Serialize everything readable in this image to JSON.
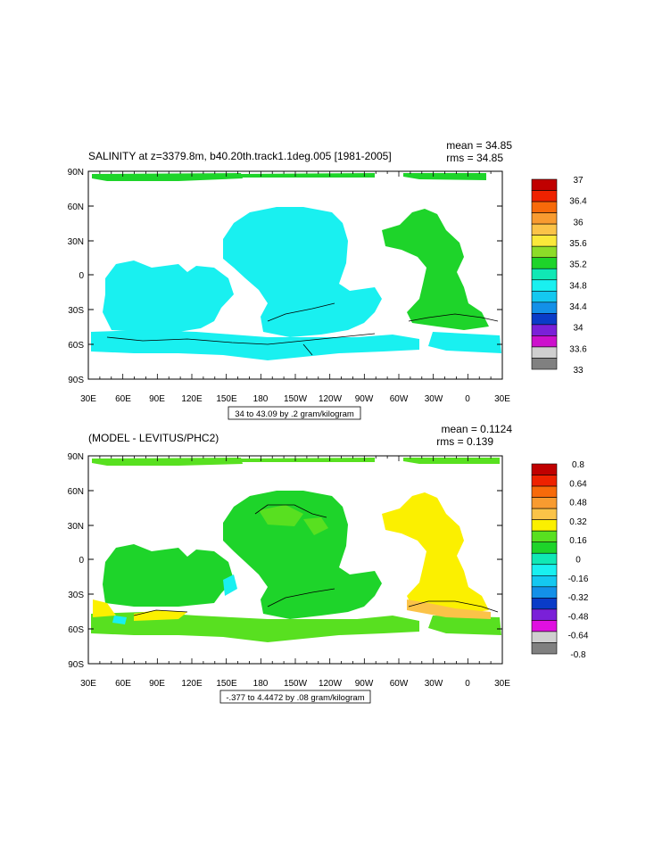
{
  "panels": [
    {
      "title": "SALINITY at z=3379.8m, b40.20th.track1.1deg.005 [1981-2005]",
      "stats": [
        "mean = 34.85",
        "rms = 34.85"
      ],
      "range_label": "34 to 43.09 by .2 gram/kilogram",
      "colorbar": {
        "labels": [
          "37",
          "36.4",
          "36",
          "35.6",
          "35.2",
          "34.8",
          "34.4",
          "34",
          "33.6",
          "33"
        ],
        "colors": [
          "#c00000",
          "#ee2200",
          "#f76a0a",
          "#f89b30",
          "#fbc348",
          "#fbe83a",
          "#8ddc28",
          "#1ed42a",
          "#10e8b5",
          "#19f0f0",
          "#14c8f0",
          "#1390e8",
          "#0a3cc8",
          "#7a20d8",
          "#cc10cc",
          "#cfcfcf",
          "#808080"
        ]
      },
      "land_mask": "salinity"
    },
    {
      "title": "(MODEL - LEVITUS/PHC2)",
      "stats": [
        "mean = 0.1124",
        "rms = 0.139"
      ],
      "range_label": "-.377 to 4.4472 by .08 gram/kilogram",
      "colorbar": {
        "labels": [
          "0.8",
          "0.64",
          "0.48",
          "0.32",
          "0.16",
          "0",
          "-0.16",
          "-0.32",
          "-0.48",
          "-0.64",
          "-0.8"
        ],
        "colors": [
          "#c00000",
          "#ee2200",
          "#f76a0a",
          "#f89b30",
          "#fbc348",
          "#fbf000",
          "#58e020",
          "#1ed42a",
          "#10e8b5",
          "#19f0f0",
          "#14c8f0",
          "#1390e8",
          "#0a3cc8",
          "#7a20d8",
          "#e010e0",
          "#cfcfcf",
          "#808080"
        ]
      },
      "land_mask": "difference"
    }
  ],
  "axes": {
    "lat_labels": [
      "90N",
      "60N",
      "30N",
      "0",
      "30S",
      "60S",
      "90S"
    ],
    "lon_labels": [
      "30E",
      "60E",
      "90E",
      "120E",
      "150E",
      "180",
      "150W",
      "120W",
      "90W",
      "60W",
      "30W",
      "0",
      "30E"
    ]
  },
  "field_colors": {
    "salinity_pacific": "#19f0f0",
    "salinity_atlantic": "#1ed42a",
    "diff_main": "#1ed42a",
    "diff_south": "#58e020",
    "diff_atlantic": "#fbf000",
    "diff_cyan": "#19f0f0",
    "diff_orange": "#fbc348"
  }
}
